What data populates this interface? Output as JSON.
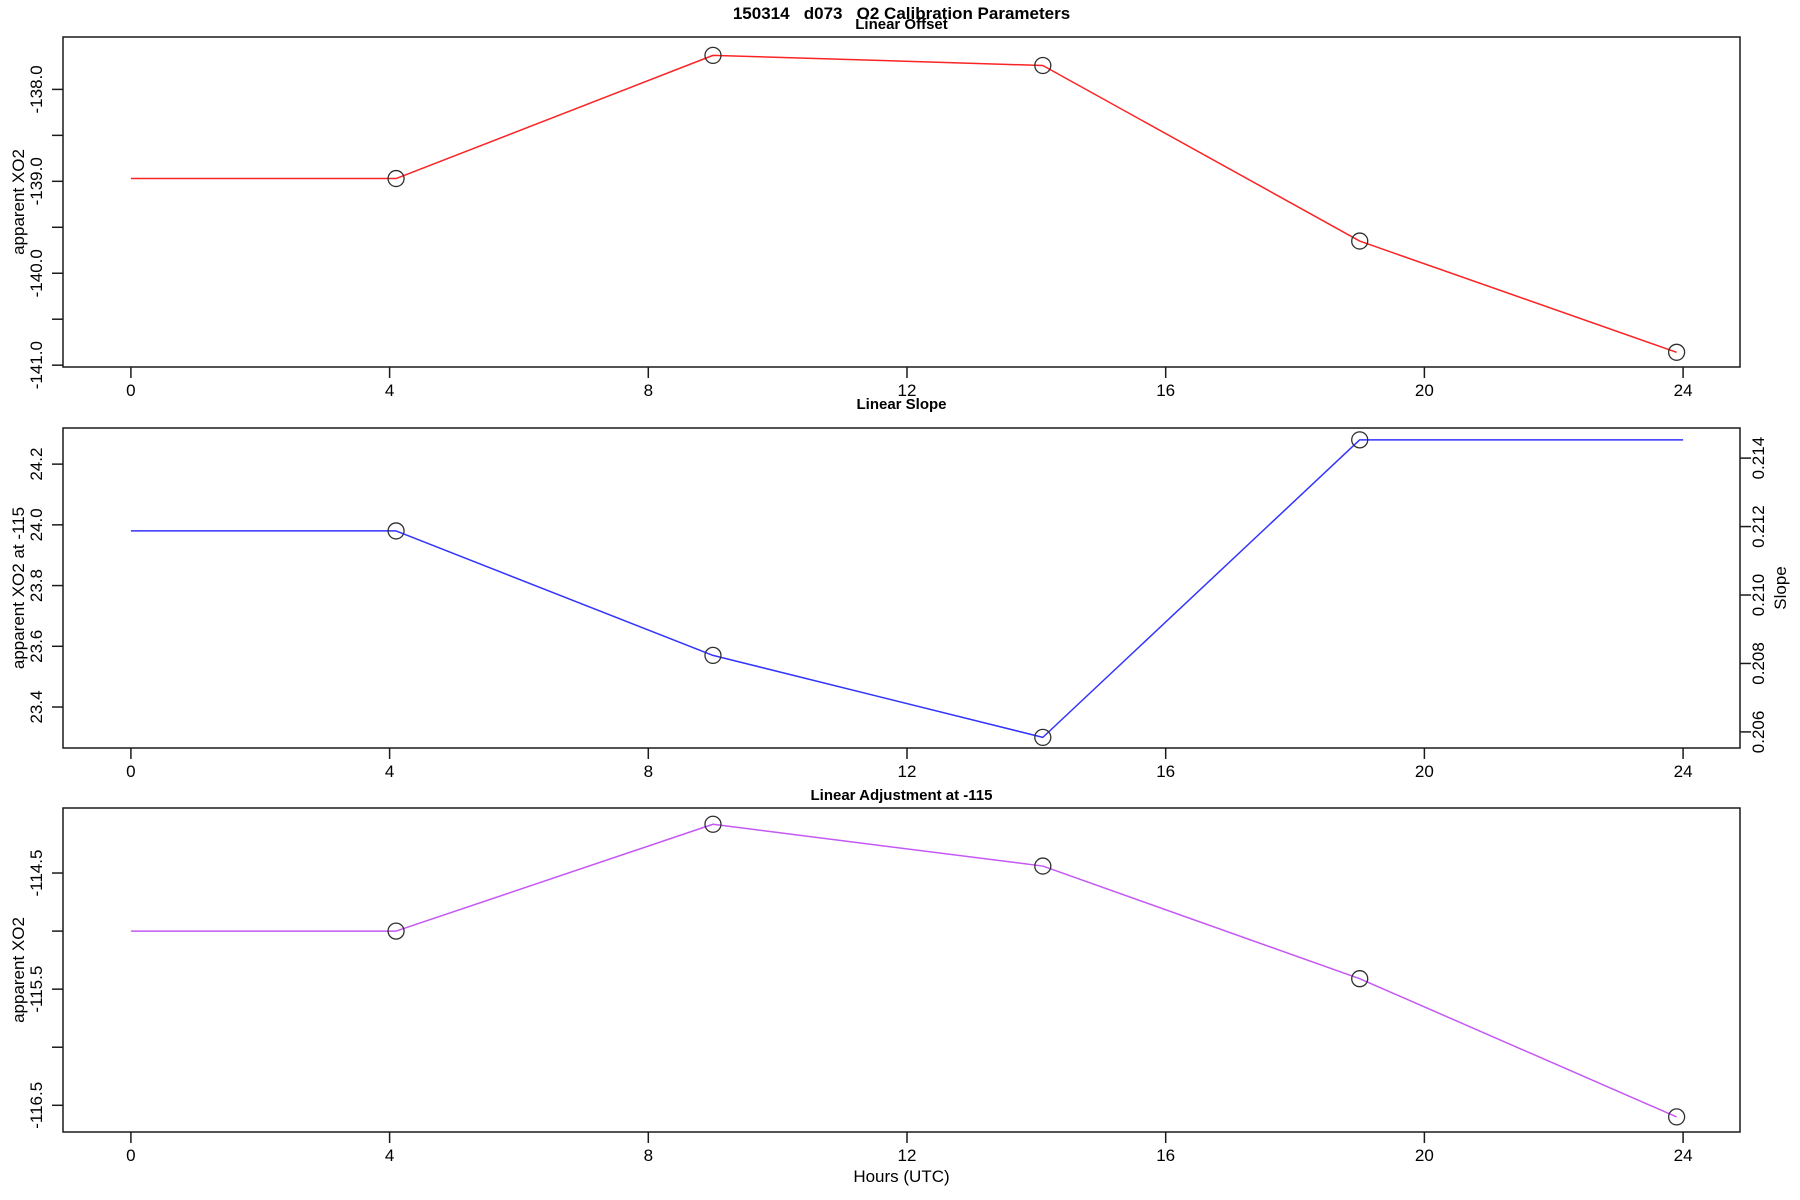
{
  "header": {
    "title": "150314   d073   O2 Calibration Parameters"
  },
  "figure": {
    "background": "#ffffff",
    "frame_color": "#1a1a1a",
    "marker_color": "#2f2f2f",
    "xlabel": "Hours (UTC)",
    "xlim": [
      -1.05,
      24.88
    ],
    "x_ticks": {
      "values": [
        0,
        4,
        8,
        12,
        16,
        20,
        24
      ],
      "labels": [
        "0",
        "4",
        "8",
        "12",
        "16",
        "20",
        "24"
      ]
    }
  },
  "chart_data": [
    {
      "type": "line",
      "title": "Linear Offset",
      "ylabel": "apparent XO2",
      "color": "#fb2424",
      "x": [
        0,
        4.1,
        9,
        14.1,
        19,
        23.9
      ],
      "y": [
        -138.97,
        -138.97,
        -137.63,
        -137.74,
        -139.65,
        -140.86
      ],
      "markers": [
        false,
        true,
        true,
        true,
        true,
        true
      ],
      "ylim": [
        -141.02,
        -137.43
      ],
      "yticks": {
        "values": [
          -141.0,
          -140.0,
          -139.0,
          -138.0
        ],
        "labels": [
          "-141.0",
          "-140.0",
          "-139.0",
          "-138.0"
        ],
        "minor": [
          -140.5,
          -139.5,
          -138.5
        ]
      }
    },
    {
      "type": "line",
      "title": "Linear Slope",
      "ylabel": "apparent XO2 at -115",
      "color": "#3333fe",
      "x": [
        0,
        4.1,
        9,
        14.1,
        19,
        24
      ],
      "y": [
        23.98,
        23.98,
        23.57,
        23.3,
        24.28,
        24.28
      ],
      "markers": [
        false,
        true,
        true,
        true,
        true,
        false
      ],
      "ylim": [
        23.265,
        24.319
      ],
      "yticks": {
        "values": [
          23.4,
          23.6,
          23.8,
          24.0,
          24.2
        ],
        "labels": [
          "23.4",
          "23.6",
          "23.8",
          "24.0",
          "24.2"
        ],
        "minor": []
      },
      "right_axis": {
        "label": "Slope",
        "ylim": [
          0.20553,
          0.21488
        ],
        "yticks": {
          "values": [
            0.206,
            0.208,
            0.21,
            0.212,
            0.214
          ],
          "labels": [
            "0.206",
            "0.208",
            "0.210",
            "0.212",
            "0.214"
          ]
        },
        "series_values": [
          0.2118,
          0.2118,
          0.2082,
          0.2058,
          0.2145,
          0.2145
        ]
      }
    },
    {
      "type": "line",
      "title": "Linear Adjustment at -115",
      "ylabel": "apparent XO2",
      "color": "#c558f5",
      "x": [
        0,
        4.1,
        9,
        14.1,
        19,
        23.9
      ],
      "y": [
        -115.0,
        -115.0,
        -114.08,
        -114.44,
        -115.41,
        -116.6
      ],
      "markers": [
        false,
        true,
        true,
        true,
        true,
        true
      ],
      "ylim": [
        -116.73,
        -113.94
      ],
      "yticks": {
        "values": [
          -116.5,
          -115.5,
          -114.5
        ],
        "labels": [
          "-116.5",
          "-115.5",
          "-114.5"
        ],
        "minor": [
          -116.0,
          -115.0
        ]
      }
    }
  ]
}
